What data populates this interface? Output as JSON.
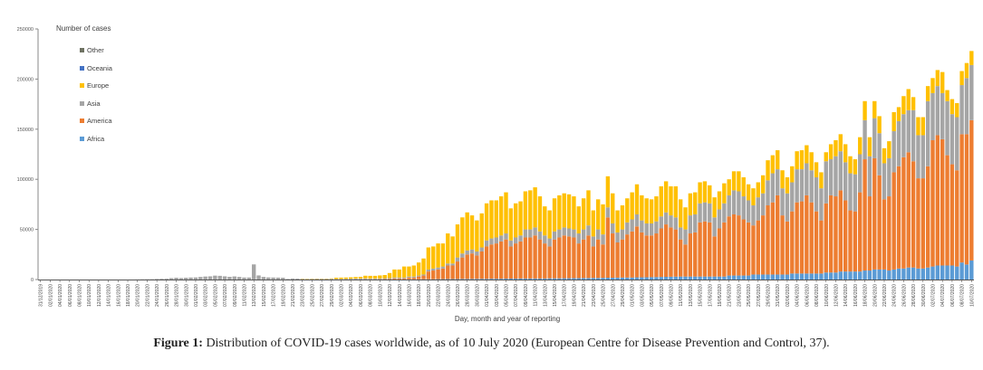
{
  "chart_data": {
    "type": "bar",
    "stacked": true,
    "value_scale": 1000,
    "value_unit_note": "series values are in thousands of cases",
    "xlabel": "Day, month and year of reporting",
    "ylabel": "",
    "ylim": [
      0,
      250000
    ],
    "y_ticks": [
      "0",
      "50000",
      "100000",
      "150000",
      "200000",
      "250000"
    ],
    "legend_title": "Number of cases",
    "legend_placement": "top-left",
    "grid": false,
    "tick_labels": [
      "31/12/2019",
      "02/01/2020",
      "04/01/2020",
      "06/01/2020",
      "08/01/2020",
      "10/01/2020",
      "12/01/2020",
      "14/01/2020",
      "16/01/2020",
      "18/01/2020",
      "20/01/2020",
      "22/01/2020",
      "24/01/2020",
      "26/01/2020",
      "28/01/2020",
      "30/01/2020",
      "01/02/2020",
      "03/02/2020",
      "05/02/2020",
      "07/02/2020",
      "09/02/2020",
      "11/02/2020",
      "13/02/2020",
      "15/02/2020",
      "17/02/2020",
      "19/02/2020",
      "21/02/2020",
      "23/02/2020",
      "25/02/2020",
      "27/02/2020",
      "29/02/2020",
      "02/03/2020",
      "04/03/2020",
      "06/03/2020",
      "08/03/2020",
      "10/03/2020",
      "12/03/2020",
      "14/03/2020",
      "16/03/2020",
      "18/03/2020",
      "20/03/2020",
      "22/03/2020",
      "24/03/2020",
      "26/03/2020",
      "28/03/2020",
      "30/03/2020",
      "01/04/2020",
      "03/04/2020",
      "05/04/2020",
      "07/04/2020",
      "09/04/2020",
      "11/04/2020",
      "13/04/2020",
      "15/04/2020",
      "17/04/2020",
      "19/04/2020",
      "21/04/2020",
      "23/04/2020",
      "25/04/2020",
      "27/04/2020",
      "29/04/2020",
      "01/05/2020",
      "03/05/2020",
      "05/05/2020",
      "07/05/2020",
      "09/05/2020",
      "11/05/2020",
      "13/05/2020",
      "15/05/2020",
      "17/05/2020",
      "19/05/2020",
      "21/05/2020",
      "23/05/2020",
      "25/05/2020",
      "27/05/2020",
      "29/05/2020",
      "31/05/2020",
      "02/06/2020",
      "04/06/2020",
      "06/06/2020",
      "08/06/2020",
      "10/06/2020",
      "12/06/2020",
      "14/06/2020",
      "16/06/2020",
      "18/06/2020",
      "20/06/2020",
      "22/06/2020",
      "24/06/2020",
      "26/06/2020",
      "28/06/2020",
      "30/06/2020",
      "02/07/2020",
      "04/07/2020",
      "06/07/2020",
      "08/07/2020",
      "10/07/2020"
    ],
    "series": [
      {
        "name": "Africa",
        "color": "#5B9BD5",
        "values": [
          0,
          0,
          0,
          0,
          0,
          0,
          0,
          0,
          0,
          0,
          0,
          0,
          0,
          0,
          0,
          0,
          0,
          0,
          0,
          0,
          0,
          0,
          0,
          0,
          0,
          0,
          0,
          0,
          0,
          0,
          0,
          0,
          0,
          0,
          0,
          0,
          0,
          0,
          0,
          0,
          0,
          0,
          0,
          0,
          0,
          0,
          0,
          0,
          0,
          0,
          0,
          0,
          0,
          0,
          0,
          0,
          0,
          0,
          0,
          0,
          0,
          0,
          0,
          0,
          0,
          0,
          0,
          0,
          0,
          0,
          0,
          0,
          0,
          0.1,
          0.1,
          0.1,
          0.2,
          0.2,
          0.2,
          0.3,
          0.3,
          0.3,
          0.4,
          0.4,
          0.5,
          0.5,
          0.5,
          0.6,
          0.6,
          0.6,
          0.7,
          0.7,
          0.7,
          0.8,
          0.8,
          0.8,
          0.9,
          0.9,
          0.9,
          1,
          1,
          1,
          1,
          1,
          1,
          1.2,
          1.2,
          1.2,
          1.3,
          1.3,
          1.4,
          1.4,
          1.5,
          1.5,
          1.6,
          1.6,
          1.7,
          1.8,
          1.8,
          1.9,
          2,
          2,
          2,
          2.2,
          2.2,
          2.3,
          2.4,
          2.5,
          2.6,
          2.7,
          2.8,
          2.9,
          3,
          3,
          3,
          3,
          3,
          3,
          3,
          3,
          3,
          3,
          4,
          4,
          4,
          4,
          4,
          5,
          5,
          5,
          5,
          5,
          5,
          5,
          5,
          6,
          6,
          6,
          6,
          6,
          6,
          6,
          7,
          7,
          7,
          8,
          8,
          8,
          8,
          8,
          9,
          9,
          10,
          10,
          10,
          9,
          10,
          11,
          11,
          12,
          12,
          11,
          11,
          12,
          13,
          14,
          14,
          14,
          14,
          13,
          17,
          15,
          19
        ]
      },
      {
        "name": "America",
        "color": "#ED7D31",
        "values": [
          0,
          0,
          0,
          0,
          0,
          0,
          0,
          0,
          0,
          0,
          0,
          0,
          0,
          0,
          0,
          0,
          0,
          0,
          0,
          0,
          0,
          0,
          0,
          0,
          0,
          0,
          0,
          0,
          0,
          0,
          0,
          0,
          0,
          0,
          0,
          0,
          0,
          0,
          0,
          0,
          0,
          0,
          0,
          0,
          0,
          0,
          0,
          0,
          0,
          0,
          0,
          0,
          0,
          0,
          0,
          0,
          0,
          0,
          0,
          0,
          0,
          0,
          0,
          0,
          0,
          0.1,
          0.1,
          0.2,
          0.2,
          0.2,
          0.3,
          0.4,
          0.5,
          0.9,
          0.9,
          0.9,
          1.8,
          1.8,
          2.8,
          3.7,
          7.7,
          8.7,
          9.6,
          10.6,
          13.5,
          13.5,
          17.5,
          21.4,
          24.4,
          25.4,
          23.3,
          27.3,
          32.3,
          34.2,
          35.2,
          37.2,
          39.1,
          32.1,
          35.1,
          37,
          41,
          41,
          43,
          39,
          35,
          31.8,
          38.8,
          40.8,
          42.7,
          41.7,
          40.6,
          34.6,
          38.5,
          42.5,
          31.4,
          38.4,
          33.3,
          60.2,
          44.2,
          35.1,
          38,
          43,
          46,
          50.8,
          44.8,
          41.7,
          41.6,
          43.5,
          48.4,
          52.3,
          49.2,
          47.1,
          37,
          32,
          43,
          44,
          54,
          55,
          54,
          40,
          48,
          54,
          59,
          61,
          60,
          56,
          53,
          49,
          54,
          59,
          69,
          72,
          79,
          59,
          53,
          62,
          71,
          72,
          78,
          71,
          62,
          53,
          69,
          77,
          76,
          81,
          71,
          61,
          60,
          79,
          111,
          74,
          111,
          94,
          70,
          74,
          97,
          102,
          111,
          115,
          106,
          90,
          90,
          101,
          126,
          130,
          126,
          110,
          101,
          96,
          128,
          130,
          140
        ]
      },
      {
        "name": "Asia",
        "color": "#A5A5A5",
        "values": [
          0,
          0,
          0,
          0,
          0,
          0,
          0,
          0,
          0,
          0,
          0,
          0,
          0,
          0,
          0,
          0,
          0,
          0,
          0,
          0,
          0.1,
          0.2,
          0.3,
          0.3,
          0.6,
          0.7,
          0.8,
          1.4,
          1.8,
          1.5,
          1.8,
          2.0,
          2.1,
          2.6,
          3.0,
          3.2,
          3.9,
          3.7,
          3.2,
          2.7,
          3.1,
          2.6,
          2.0,
          2.0,
          15.1,
          4.1,
          2.6,
          2.1,
          2.0,
          1.9,
          1.8,
          0.6,
          1.0,
          0.9,
          0.6,
          0.5,
          0.6,
          0.7,
          0.6,
          0.6,
          0.7,
          0.6,
          0.6,
          0.7,
          0.8,
          0.9,
          0.9,
          1.0,
          0.9,
          0.9,
          0.9,
          0.9,
          1.0,
          1,
          1,
          1,
          1,
          1,
          1,
          1,
          2,
          2,
          2,
          2,
          2,
          2,
          4,
          4,
          4,
          4,
          4,
          4,
          6,
          6,
          6,
          6,
          6,
          6,
          6,
          6,
          8,
          8,
          8,
          8,
          8,
          8,
          8,
          8,
          8,
          8,
          8,
          10,
          10,
          10,
          10,
          10,
          10,
          10,
          10,
          10,
          10,
          12,
          12,
          12,
          12,
          12,
          12,
          12,
          12,
          12,
          12,
          12,
          12,
          15,
          18,
          18,
          19,
          19,
          19,
          19,
          19,
          19,
          21,
          24,
          24,
          23,
          22,
          20,
          23,
          22,
          25,
          29,
          26,
          27,
          28,
          29,
          33,
          32,
          32,
          32,
          34,
          32,
          42,
          36,
          40,
          39,
          38,
          37,
          37,
          38,
          39,
          40,
          40,
          42,
          36,
          38,
          41,
          45,
          43,
          42,
          51,
          43,
          43,
          65,
          47,
          49,
          46,
          54,
          50,
          53,
          49,
          56,
          55
        ]
      },
      {
        "name": "Europe",
        "color": "#FFC000",
        "values": [
          0,
          0,
          0,
          0,
          0,
          0,
          0,
          0,
          0,
          0,
          0,
          0,
          0,
          0,
          0,
          0,
          0,
          0,
          0,
          0,
          0,
          0,
          0,
          0,
          0,
          0,
          0,
          0,
          0,
          0,
          0,
          0,
          0,
          0,
          0,
          0,
          0,
          0,
          0,
          0,
          0,
          0,
          0,
          0,
          0,
          0,
          0,
          0,
          0,
          0,
          0,
          0,
          0,
          0,
          0.1,
          0.1,
          0.1,
          0.1,
          0.2,
          0.3,
          0.4,
          1.2,
          1.3,
          1.3,
          1.4,
          1.5,
          1.7,
          2.6,
          2.6,
          2.6,
          2.9,
          3.2,
          5.0,
          8,
          8,
          11,
          10,
          11,
          13,
          16,
          22,
          22,
          24,
          23,
          30,
          27,
          33,
          36,
          38,
          34,
          31,
          34,
          37,
          38,
          37,
          39,
          41,
          32,
          34,
          34,
          38,
          39,
          40,
          35,
          29,
          28,
          33,
          34,
          34,
          34,
          33,
          27,
          31,
          35,
          26,
          30,
          30,
          31,
          30,
          22,
          24,
          24,
          27,
          30,
          25,
          25,
          24,
          25,
          30,
          31,
          29,
          31,
          28,
          22,
          22,
          22,
          21,
          21,
          18,
          20,
          18,
          20,
          16,
          19,
          20,
          19,
          16,
          17,
          15,
          18,
          20,
          18,
          19,
          18,
          16,
          16,
          18,
          19,
          18,
          18,
          15,
          16,
          9,
          15,
          16,
          17,
          18,
          17,
          15,
          17,
          19,
          19,
          17,
          17,
          15,
          17,
          19,
          14,
          18,
          21,
          13,
          18,
          18,
          15,
          15,
          16,
          21,
          11,
          15,
          14,
          14,
          15,
          14
        ]
      },
      {
        "name": "Oceania",
        "color": "#4472C4",
        "values": []
      },
      {
        "name": "Other",
        "color": "#6E7262",
        "values": []
      }
    ]
  },
  "caption": {
    "label": "Figure 1:",
    "text": " Distribution of COVID-19 cases worldwide, as of 10 July 2020 (European Centre for Disease Prevention and Control, 37)."
  }
}
